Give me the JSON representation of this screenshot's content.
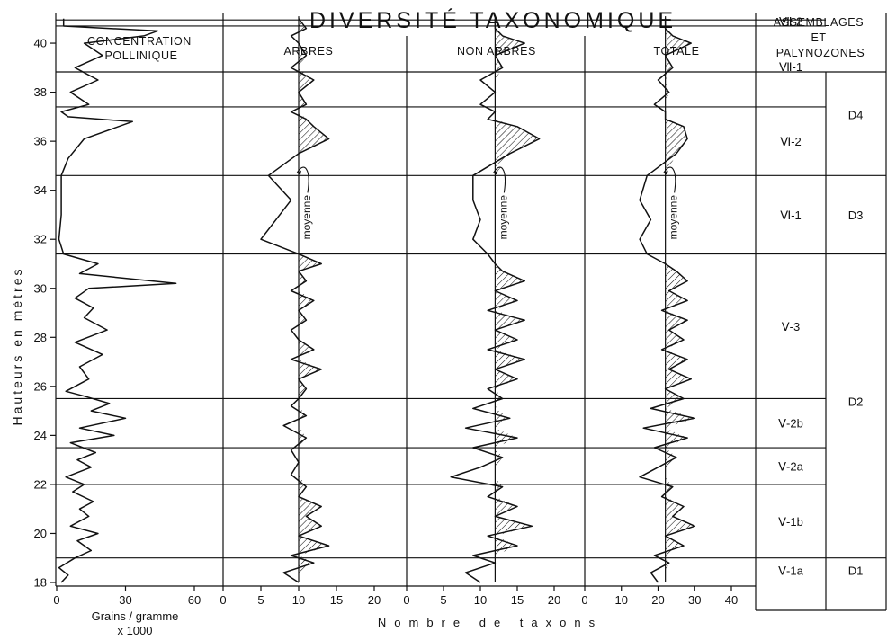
{
  "chart_data": {
    "type": "line",
    "title": "DIVERSITÉ TAXONOMIQUE",
    "ylabel": "Hauteurs en mètres",
    "xlabel": "Nombre de taxons",
    "grid": false,
    "ylim": [
      18,
      41
    ],
    "y_ticks": [
      "18",
      "20",
      "22",
      "24",
      "26",
      "28",
      "30",
      "32",
      "34",
      "36",
      "38",
      "40"
    ],
    "mean_label": "moyenne",
    "zone_boundaries": [
      19,
      22,
      23.5,
      25.5,
      31.4,
      34.6,
      37.4,
      40.7,
      40.95
    ],
    "panels": [
      {
        "title": "CONCENTRATION POLLINIQUE",
        "xlabel": "Grains / gramme",
        "xlabel2": "x 1000",
        "xlim": [
          0,
          60
        ],
        "x_ticks": [
          "0",
          "30",
          "60"
        ],
        "series": [
          {
            "y": [
              18,
              18.3,
              18.6,
              19,
              19.3,
              19.7,
              20,
              20.3,
              20.7,
              21,
              21.3,
              21.7,
              22,
              22.3,
              22.7,
              23,
              23.3,
              23.7,
              24,
              24.3,
              24.7,
              25,
              25.3,
              25.6,
              25.8,
              26.3,
              26.8,
              27.3,
              27.8,
              28.3,
              28.8,
              29.2,
              29.6,
              30,
              30.2,
              30.6,
              31,
              31.4,
              32,
              33,
              34.6,
              35.3,
              36.1,
              36.8,
              37,
              37.2,
              37.5,
              38,
              38.5,
              39,
              39.5,
              40,
              40.3,
              40.5,
              40.7,
              41
            ],
            "x": [
              2,
              5,
              1,
              8,
              15,
              9,
              18,
              6,
              14,
              10,
              16,
              7,
              12,
              4,
              15,
              9,
              17,
              6,
              25,
              10,
              30,
              15,
              23,
              12,
              4,
              14,
              10,
              20,
              8,
              22,
              12,
              16,
              8,
              14,
              52,
              10,
              18,
              3,
              1,
              2,
              2,
              5,
              12,
              33,
              5,
              2,
              14,
              6,
              18,
              8,
              20,
              12,
              38,
              44,
              3,
              3
            ]
          }
        ]
      },
      {
        "title": "ARBRES",
        "xlim": [
          0,
          20
        ],
        "x_ticks": [
          "0",
          "5",
          "10",
          "15",
          "20"
        ],
        "mean": 10,
        "series": [
          {
            "y": [
              18,
              18.4,
              18.8,
              19.1,
              19.5,
              19.9,
              20.3,
              20.7,
              21.1,
              21.5,
              21.9,
              22.4,
              22.9,
              23.4,
              23.9,
              24.4,
              24.8,
              25.2,
              25.5,
              25.9,
              26.3,
              26.7,
              27.1,
              27.5,
              27.9,
              28.3,
              28.7,
              29.1,
              29.5,
              29.9,
              30.3,
              30.7,
              31,
              31.4,
              32,
              32.8,
              33.6,
              34.6,
              35.5,
              36.1,
              36.6,
              36.9,
              37.2,
              37.5,
              38,
              38.5,
              39,
              39.5,
              40,
              40.3,
              40.6,
              41
            ],
            "x": [
              10,
              8,
              12,
              9,
              14,
              10,
              13,
              11,
              13,
              10,
              11,
              9,
              10,
              9,
              11,
              8,
              11,
              9,
              10,
              11,
              10,
              13,
              9,
              12,
              10,
              9,
              11,
              10,
              12,
              9,
              11,
              10,
              13,
              10,
              5,
              7,
              9,
              6,
              10,
              14,
              12,
              11,
              9,
              11,
              10,
              12,
              9,
              11,
              10,
              9,
              11,
              10
            ]
          }
        ]
      },
      {
        "title": "NON ARBRES",
        "xlim": [
          0,
          20
        ],
        "x_ticks": [
          "0",
          "5",
          "10",
          "15",
          "20"
        ],
        "mean": 12,
        "series": [
          {
            "y": [
              18,
              18.4,
              18.8,
              19.1,
              19.5,
              19.9,
              20.3,
              20.7,
              21.1,
              21.5,
              21.9,
              22.3,
              22.7,
              23.1,
              23.5,
              23.9,
              24.3,
              24.7,
              25.1,
              25.5,
              25.9,
              26.3,
              26.7,
              27.1,
              27.5,
              27.9,
              28.3,
              28.7,
              29.1,
              29.5,
              29.9,
              30.3,
              30.7,
              31,
              31.4,
              32,
              32.8,
              33.6,
              34.6,
              35.5,
              36.1,
              36.6,
              36.9,
              37.2,
              37.5,
              38,
              38.5,
              39,
              39.5,
              40,
              40.3,
              40.6,
              41
            ],
            "x": [
              10,
              8,
              12,
              9,
              15,
              11,
              17,
              12,
              15,
              11,
              13,
              6,
              10,
              13,
              9,
              15,
              8,
              14,
              9,
              13,
              11,
              15,
              12,
              16,
              11,
              15,
              12,
              16,
              11,
              15,
              12,
              16,
              13,
              12,
              11,
              9,
              10,
              9,
              9,
              14,
              18,
              15,
              11,
              12,
              10,
              12,
              10,
              13,
              12,
              16,
              13,
              12,
              12
            ]
          }
        ]
      },
      {
        "title": "TOTALE",
        "xlim": [
          0,
          40
        ],
        "x_ticks": [
          "0",
          "10",
          "20",
          "30",
          "40"
        ],
        "mean": 22,
        "series": [
          {
            "y": [
              18,
              18.4,
              18.8,
              19.1,
              19.5,
              19.9,
              20.3,
              20.7,
              21.1,
              21.5,
              21.9,
              22.3,
              22.7,
              23.1,
              23.5,
              23.9,
              24.3,
              24.7,
              25.1,
              25.5,
              25.9,
              26.3,
              26.7,
              27.1,
              27.5,
              27.9,
              28.3,
              28.7,
              29.1,
              29.5,
              29.9,
              30.3,
              30.7,
              31,
              31.4,
              32,
              32.8,
              33.6,
              34.6,
              35.5,
              36.1,
              36.6,
              36.9,
              37.2,
              37.5,
              38,
              38.5,
              39,
              39.5,
              40,
              40.3,
              40.6,
              41
            ],
            "x": [
              20,
              18,
              23,
              19,
              27,
              22,
              30,
              24,
              27,
              21,
              24,
              15,
              20,
              25,
              19,
              28,
              16,
              30,
              18,
              27,
              22,
              29,
              23,
              28,
              21,
              27,
              23,
              28,
              21,
              28,
              23,
              28,
              25,
              22,
              17,
              15,
              18,
              15,
              17,
              25,
              28,
              27,
              22,
              22,
              19,
              23,
              20,
              24,
              22,
              29,
              24,
              22,
              22
            ]
          }
        ]
      }
    ],
    "zones": {
      "title": "ASSEMBLAGES ET PALYNOZONES",
      "assemblages": [
        {
          "label": "Ⅴ-1a",
          "from": 18,
          "to": 19
        },
        {
          "label": "Ⅴ-1b",
          "from": 19,
          "to": 22
        },
        {
          "label": "Ⅴ-2a",
          "from": 22,
          "to": 23.5
        },
        {
          "label": "Ⅴ-2b",
          "from": 23.5,
          "to": 25.5
        },
        {
          "label": "Ⅴ-3",
          "from": 25.5,
          "to": 31.4
        },
        {
          "label": "Ⅵ-1",
          "from": 31.4,
          "to": 34.6
        },
        {
          "label": "Ⅵ-2",
          "from": 34.6,
          "to": 37.4
        },
        {
          "label": "Ⅶ-1",
          "from": 37.4,
          "to": 40.7
        },
        {
          "label": "Ⅶ-2",
          "from": 40.7,
          "to": 41.1
        }
      ],
      "palynozones": [
        {
          "label": "D1",
          "from": 18,
          "to": 19
        },
        {
          "label": "D2",
          "from": 19,
          "to": 31.4
        },
        {
          "label": "D3",
          "from": 31.4,
          "to": 34.6
        },
        {
          "label": "D4",
          "from": 34.6,
          "to": 41.1
        }
      ]
    }
  }
}
